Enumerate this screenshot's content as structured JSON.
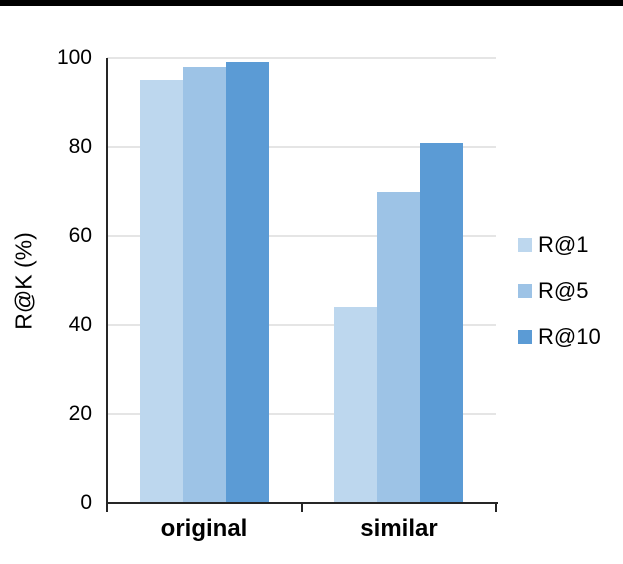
{
  "page": {
    "top_bar_color": "#000000",
    "background_color": "#ffffff"
  },
  "chart_data": {
    "type": "bar",
    "title": "",
    "categories": [
      "original",
      "similar"
    ],
    "series": [
      {
        "name": "R@1",
        "color": "#bdd7ee",
        "values": [
          95,
          44
        ]
      },
      {
        "name": "R@5",
        "color": "#9dc3e6",
        "values": [
          98,
          70
        ]
      },
      {
        "name": "R@10",
        "color": "#5b9bd5",
        "values": [
          99,
          81
        ]
      }
    ],
    "xlabel": "",
    "ylabel": "R@K (%)",
    "ylim": [
      0,
      100
    ],
    "yticks": [
      0,
      20,
      40,
      60,
      80,
      100
    ],
    "grid": "horizontal",
    "legend_position": "right",
    "axis_color": "#262626",
    "gridline_color": "#e5e5e5"
  }
}
